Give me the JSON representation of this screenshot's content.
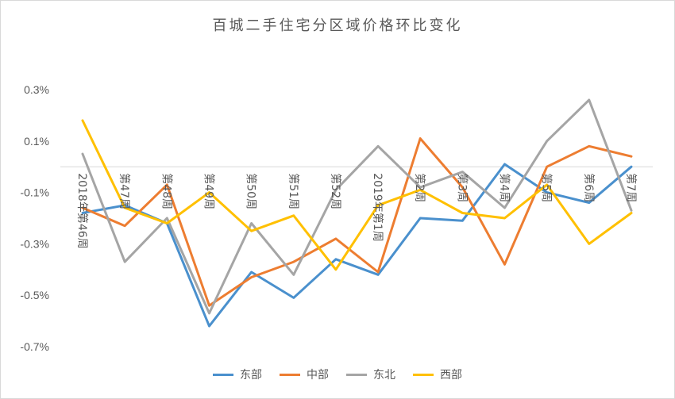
{
  "chart_data": {
    "type": "line",
    "title": "百城二手住宅分区域价格环比变化",
    "xlabel": "",
    "ylabel": "",
    "ylim": [
      -0.7,
      0.3
    ],
    "yticks": [
      "0.3%",
      "0.1%",
      "-0.1%",
      "-0.3%",
      "-0.5%",
      "-0.7%"
    ],
    "grid": false,
    "legend_position": "bottom",
    "categories": [
      "2018年第46周",
      "第47周",
      "第48周",
      "第49周",
      "第50周",
      "第51周",
      "第52周",
      "2019年第1周",
      "第2周",
      "第3周",
      "第4周",
      "第5周",
      "第6周",
      "第7周"
    ],
    "series": [
      {
        "name": "东部",
        "color": "#4a90cd",
        "values": [
          -0.18,
          -0.15,
          -0.22,
          -0.62,
          -0.41,
          -0.51,
          -0.36,
          -0.42,
          -0.2,
          -0.21,
          0.01,
          -0.1,
          -0.14,
          0.0
        ]
      },
      {
        "name": "中部",
        "color": "#ed7d31",
        "values": [
          -0.16,
          -0.23,
          -0.07,
          -0.54,
          -0.43,
          -0.37,
          -0.28,
          -0.41,
          0.11,
          -0.08,
          -0.38,
          0.0,
          0.08,
          0.04
        ]
      },
      {
        "name": "东北",
        "color": "#a5a5a5",
        "values": [
          0.05,
          -0.37,
          -0.2,
          -0.57,
          -0.22,
          -0.42,
          -0.09,
          0.08,
          -0.08,
          -0.02,
          -0.16,
          0.1,
          0.26,
          -0.17
        ]
      },
      {
        "name": "西部",
        "color": "#ffc000",
        "values": [
          0.18,
          -0.16,
          -0.22,
          -0.1,
          -0.25,
          -0.19,
          -0.4,
          -0.15,
          -0.09,
          -0.18,
          -0.2,
          -0.07,
          -0.3,
          -0.18
        ]
      }
    ]
  }
}
